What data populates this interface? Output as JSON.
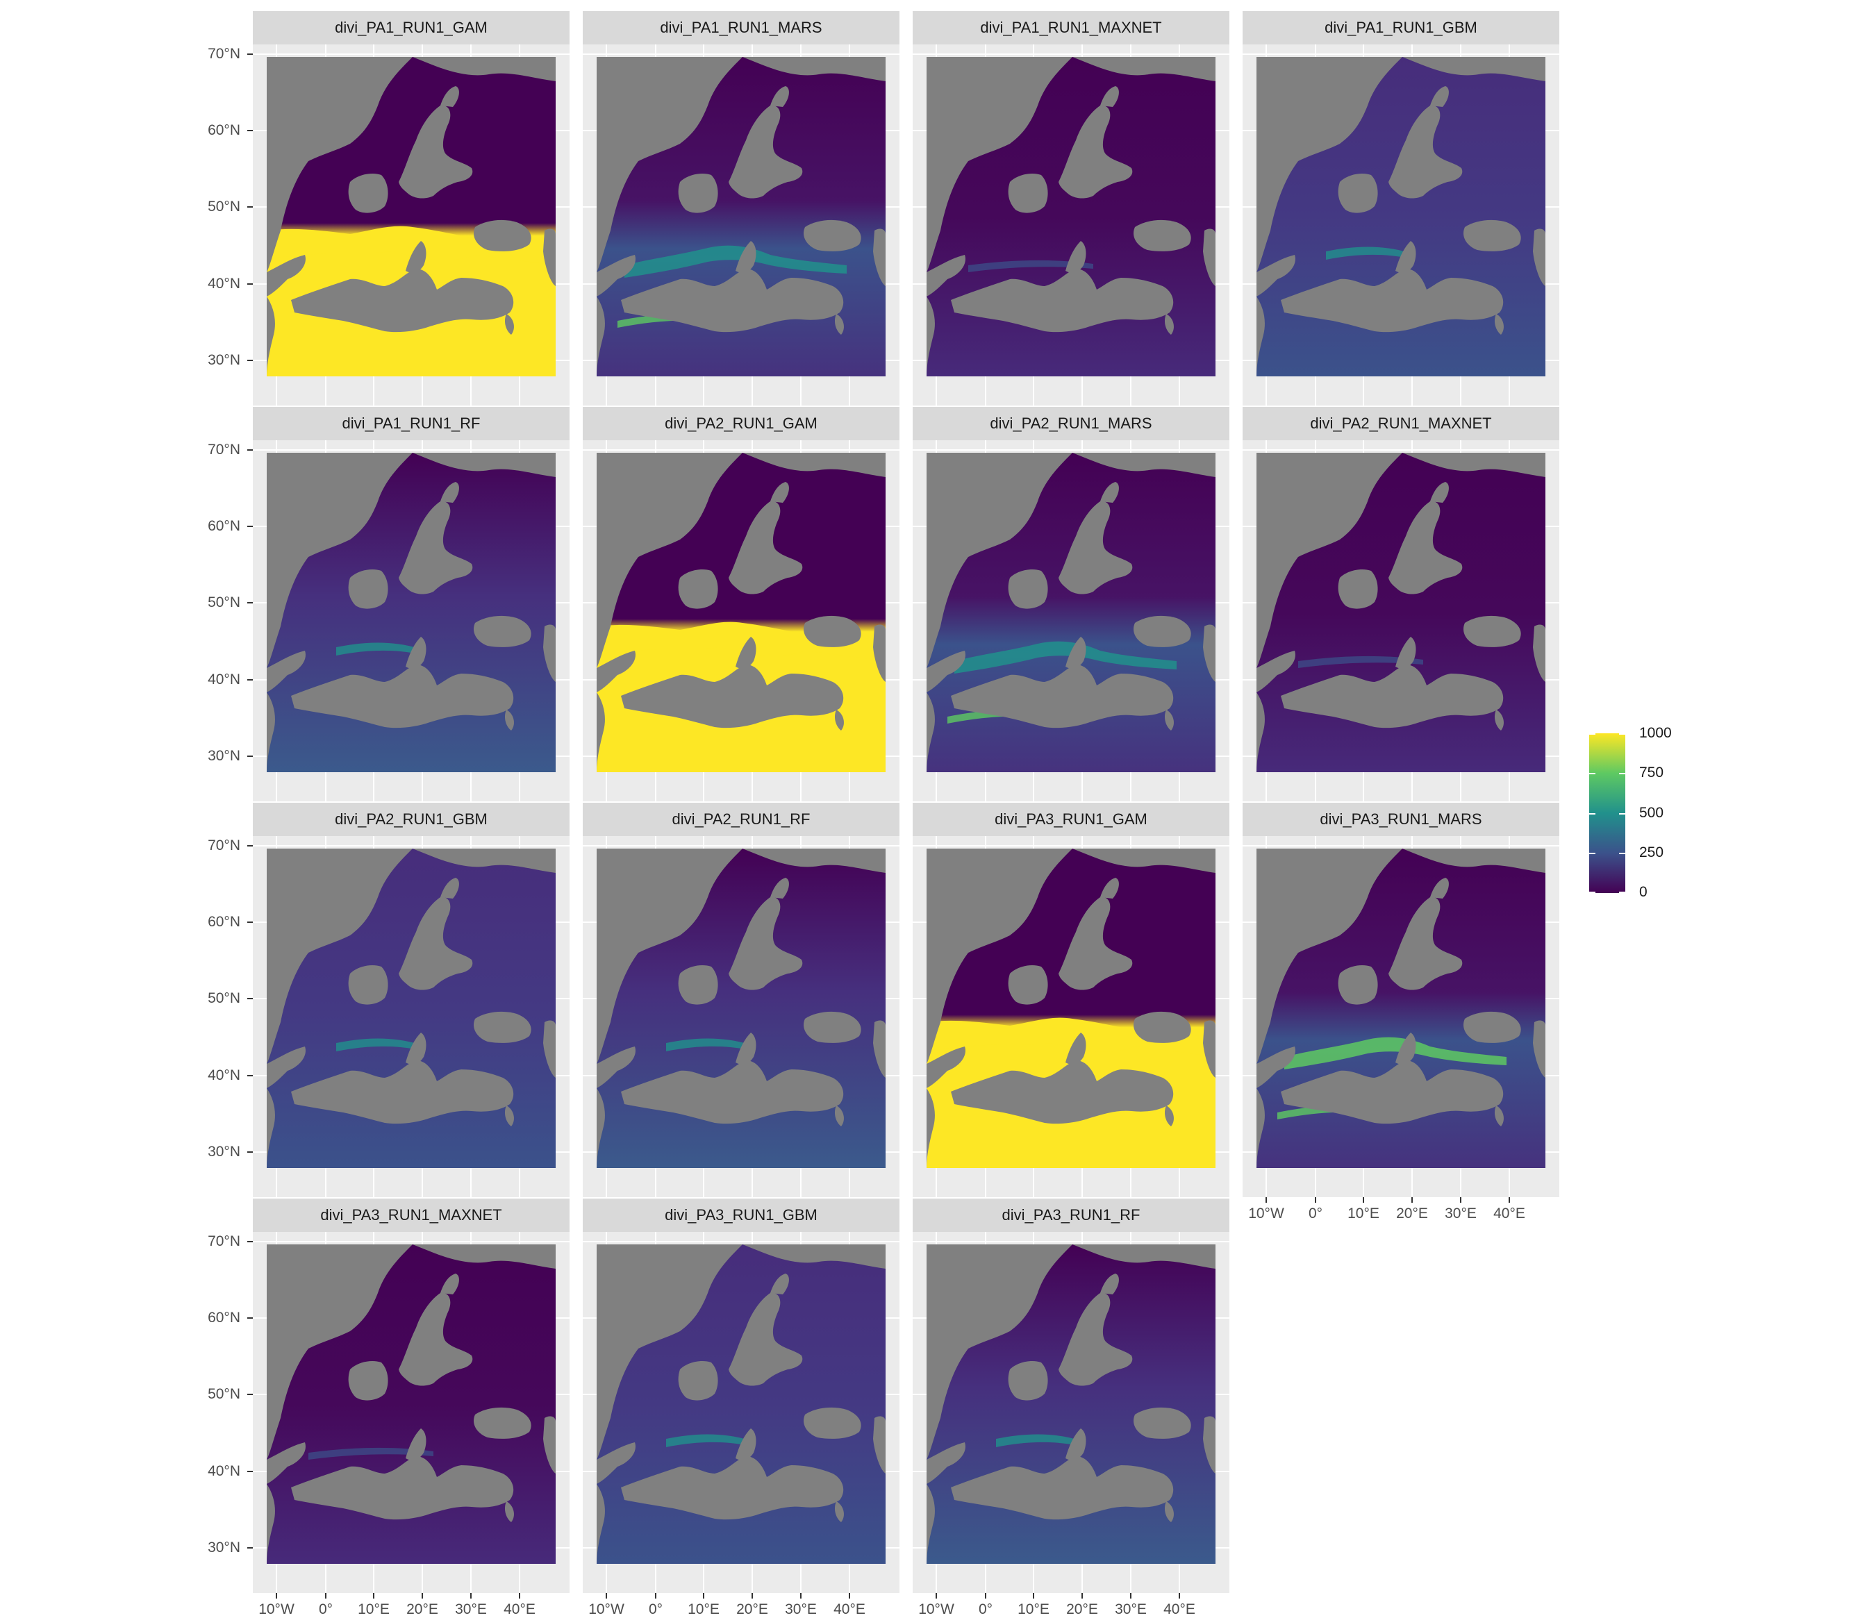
{
  "panels": [
    {
      "title": "divi_PA1_RUN1_GAM",
      "pattern": "gam-strong"
    },
    {
      "title": "divi_PA1_RUN1_MARS",
      "pattern": "mars"
    },
    {
      "title": "divi_PA1_RUN1_MAXNET",
      "pattern": "low"
    },
    {
      "title": "divi_PA1_RUN1_GBM",
      "pattern": "gbm"
    },
    {
      "title": "divi_PA1_RUN1_RF",
      "pattern": "rf"
    },
    {
      "title": "divi_PA2_RUN1_GAM",
      "pattern": "gam-strong"
    },
    {
      "title": "divi_PA2_RUN1_MARS",
      "pattern": "mars"
    },
    {
      "title": "divi_PA2_RUN1_MAXNET",
      "pattern": "low"
    },
    {
      "title": "divi_PA2_RUN1_GBM",
      "pattern": "gbm"
    },
    {
      "title": "divi_PA2_RUN1_RF",
      "pattern": "rf"
    },
    {
      "title": "divi_PA3_RUN1_GAM",
      "pattern": "gam-strong"
    },
    {
      "title": "divi_PA3_RUN1_MARS",
      "pattern": "mars-strong"
    },
    {
      "title": "divi_PA3_RUN1_MAXNET",
      "pattern": "low"
    },
    {
      "title": "divi_PA3_RUN1_GBM",
      "pattern": "gbm"
    },
    {
      "title": "divi_PA3_RUN1_RF",
      "pattern": "rf"
    }
  ],
  "y_ticks": [
    "70°N",
    "60°N",
    "50°N",
    "40°N",
    "30°N"
  ],
  "x_ticks": [
    "10°W",
    "0°",
    "10°E",
    "20°E",
    "30°E",
    "40°E"
  ],
  "legend": {
    "ticks": [
      "1000",
      "750",
      "500",
      "250",
      "0"
    ],
    "min": 0,
    "max": 1000,
    "colors": [
      "#440154",
      "#3b528b",
      "#21918c",
      "#5ec962",
      "#fde725"
    ]
  },
  "colors": {
    "panel_background": "#ebebeb",
    "strip_background": "#d9d9d9",
    "na_color": "#808080"
  }
}
